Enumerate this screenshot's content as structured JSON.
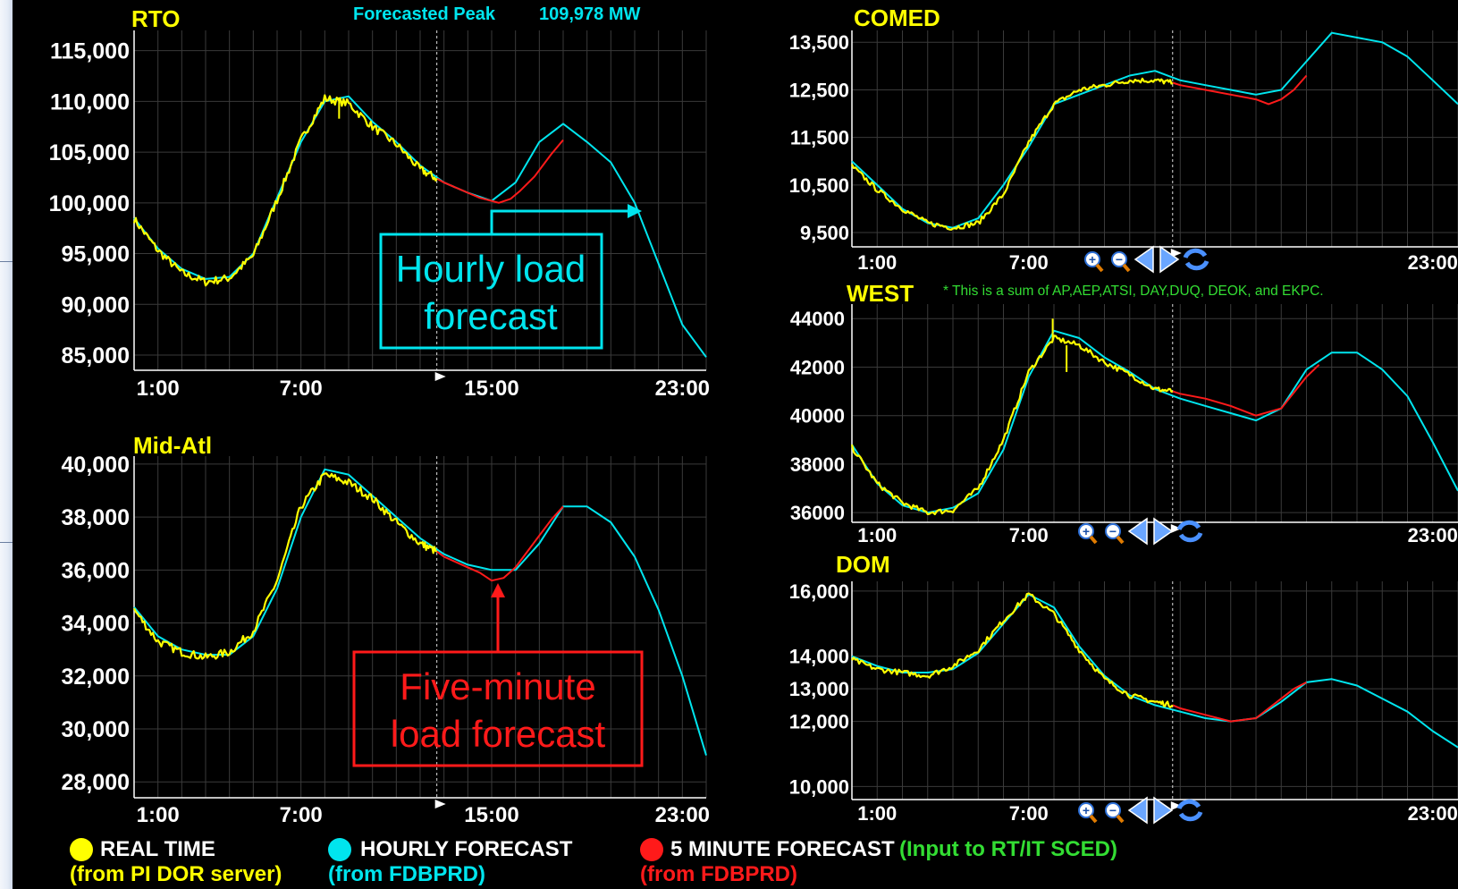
{
  "header": {
    "forecast_label": "Forecasted Peak",
    "forecast_value": "109,978 MW"
  },
  "colors": {
    "real_time": "#ffff00",
    "hourly": "#00e5ee",
    "five_minute": "#ff1a1a",
    "title": "#ffff00",
    "note": "#33dd33",
    "grid": "#3a3a3a"
  },
  "icons": [
    "zoom-in-icon",
    "zoom-out-icon",
    "arrow-left-icon",
    "arrow-right-icon",
    "refresh-icon"
  ],
  "chart_data": [
    {
      "id": "rto",
      "type": "line",
      "title": "RTO",
      "ylim": [
        83500,
        117000
      ],
      "xlim": [
        0,
        24
      ],
      "now_x": 12.7,
      "yticks": [
        85000,
        90000,
        95000,
        100000,
        105000,
        110000,
        115000
      ],
      "ytick_labels": [
        "85,000",
        "90,000",
        "95,000",
        "100,000",
        "105,000",
        "110,000",
        "115,000"
      ],
      "xticks": [
        1,
        7,
        15,
        23
      ],
      "xtick_labels": [
        "1:00",
        "7:00",
        "15:00",
        "23:00"
      ],
      "series": [
        {
          "key": "hourly",
          "x": [
            0,
            1,
            2,
            3,
            4,
            5,
            6,
            7,
            8,
            9,
            10,
            11,
            12,
            13,
            14,
            15,
            16,
            17,
            18,
            19,
            20,
            21,
            22,
            23,
            24
          ],
          "y": [
            98500,
            95500,
            93500,
            92500,
            92700,
            95000,
            100500,
            106000,
            110000,
            110500,
            108000,
            106000,
            103700,
            102000,
            101000,
            100200,
            102000,
            106000,
            107800,
            106000,
            104000,
            100000,
            94000,
            88000,
            84800
          ]
        },
        {
          "key": "real_time",
          "x": [
            0,
            1,
            2,
            3,
            4,
            5,
            6,
            7,
            8,
            9,
            10,
            11,
            12,
            12.7
          ],
          "y": [
            98400,
            95300,
            93100,
            92200,
            92600,
            94800,
            100300,
            106200,
            110300,
            109800,
            107500,
            105800,
            103300,
            102400
          ]
        },
        {
          "key": "five_minute",
          "x": [
            12.7,
            13,
            14,
            14.5,
            15,
            15.3,
            15.8,
            16.2,
            16.8,
            17.5,
            18
          ],
          "y": [
            102400,
            102000,
            101000,
            100500,
            100200,
            100000,
            100400,
            101200,
            102600,
            104800,
            106200
          ]
        }
      ]
    },
    {
      "id": "midatl",
      "type": "line",
      "title": "Mid-Atl",
      "ylim": [
        27400,
        40300
      ],
      "xlim": [
        0,
        24
      ],
      "now_x": 12.7,
      "yticks": [
        28000,
        30000,
        32000,
        34000,
        36000,
        38000,
        40000
      ],
      "ytick_labels": [
        "28,000",
        "30,000",
        "32,000",
        "34,000",
        "36,000",
        "38,000",
        "40,000"
      ],
      "xticks": [
        1,
        7,
        15,
        23
      ],
      "xtick_labels": [
        "1:00",
        "7:00",
        "15:00",
        "23:00"
      ],
      "series": [
        {
          "key": "hourly",
          "x": [
            0,
            1,
            2,
            3,
            4,
            5,
            6,
            7,
            8,
            9,
            10,
            11,
            12,
            13,
            14,
            15,
            16,
            17,
            18,
            19,
            20,
            21,
            22,
            23,
            24
          ],
          "y": [
            34600,
            33500,
            33000,
            32800,
            32800,
            33500,
            35300,
            38000,
            39800,
            39600,
            38800,
            38000,
            37200,
            36600,
            36200,
            36000,
            36000,
            37000,
            38400,
            38400,
            37800,
            36500,
            34500,
            32000,
            29000
          ]
        },
        {
          "key": "real_time",
          "x": [
            0,
            1,
            2,
            3,
            4,
            5,
            6,
            7,
            8,
            9,
            10,
            11,
            12,
            12.7
          ],
          "y": [
            34500,
            33300,
            32900,
            32700,
            32900,
            33700,
            35600,
            38400,
            39600,
            39300,
            38700,
            37800,
            37000,
            36700
          ]
        },
        {
          "key": "five_minute",
          "x": [
            12.7,
            13,
            14,
            14.5,
            15,
            15.5,
            16,
            16.5,
            17,
            17.5,
            18
          ],
          "y": [
            36700,
            36500,
            36100,
            35900,
            35600,
            35700,
            36100,
            36700,
            37300,
            37900,
            38400
          ]
        }
      ]
    },
    {
      "id": "comed",
      "type": "line",
      "title": "COMED",
      "ylim": [
        9200,
        13750
      ],
      "xlim": [
        0,
        24
      ],
      "now_x": 12.7,
      "yticks": [
        9500,
        10500,
        11500,
        12500,
        13500
      ],
      "ytick_labels": [
        "9,500",
        "10,500",
        "11,500",
        "12,500",
        "13,500"
      ],
      "xticks": [
        1,
        7,
        23
      ],
      "xtick_labels": [
        "1:00",
        "7:00",
        "23:00"
      ],
      "series": [
        {
          "key": "hourly",
          "x": [
            0,
            1,
            2,
            3,
            4,
            5,
            6,
            7,
            8,
            9,
            10,
            11,
            12,
            13,
            14,
            15,
            16,
            17,
            18,
            19,
            20,
            21,
            22,
            23,
            24
          ],
          "y": [
            11000,
            10500,
            10000,
            9700,
            9600,
            9800,
            10500,
            11300,
            12200,
            12400,
            12600,
            12800,
            12900,
            12700,
            12600,
            12500,
            12400,
            12500,
            13100,
            13700,
            13600,
            13500,
            13200,
            12700,
            12200
          ]
        },
        {
          "key": "real_time",
          "x": [
            0,
            1,
            2,
            3,
            4,
            5,
            6,
            7,
            8,
            9,
            10,
            11,
            12,
            12.7
          ],
          "y": [
            10900,
            10400,
            10000,
            9700,
            9600,
            9700,
            10300,
            11400,
            12200,
            12500,
            12600,
            12700,
            12700,
            12650
          ]
        },
        {
          "key": "five_minute",
          "x": [
            12.7,
            13,
            14,
            15,
            16,
            16.5,
            17,
            17.5,
            18
          ],
          "y": [
            12650,
            12600,
            12500,
            12400,
            12300,
            12200,
            12300,
            12500,
            12800
          ]
        }
      ]
    },
    {
      "id": "west",
      "type": "line",
      "title": "WEST",
      "note": "* This is a sum of AP,AEP,ATSI, DAY,DUQ, DEOK, and EKPC.",
      "ylim": [
        35600,
        44600
      ],
      "xlim": [
        0,
        24
      ],
      "now_x": 12.7,
      "yticks": [
        36000,
        38000,
        40000,
        42000,
        44000
      ],
      "ytick_labels": [
        "36000",
        "38000",
        "40000",
        "42000",
        "44000"
      ],
      "xticks": [
        1,
        7,
        23
      ],
      "xtick_labels": [
        "1:00",
        "7:00",
        "23:00"
      ],
      "series": [
        {
          "key": "hourly",
          "x": [
            0,
            1,
            2,
            3,
            4,
            5,
            6,
            7,
            8,
            9,
            10,
            11,
            12,
            13,
            14,
            15,
            16,
            17,
            18,
            19,
            20,
            21,
            22,
            23,
            24
          ],
          "y": [
            38800,
            37200,
            36300,
            36000,
            36200,
            36800,
            38600,
            41600,
            43500,
            43200,
            42400,
            41800,
            41100,
            40700,
            40400,
            40100,
            39800,
            40300,
            41900,
            42600,
            42600,
            41900,
            40800,
            38900,
            36900
          ]
        },
        {
          "key": "real_time",
          "x": [
            0,
            1,
            2,
            3,
            4,
            5,
            6,
            7,
            8,
            9,
            10,
            11,
            12,
            12.7
          ],
          "y": [
            38700,
            37200,
            36400,
            36000,
            36100,
            37000,
            39000,
            41800,
            43200,
            42900,
            42200,
            41700,
            41100,
            41000
          ]
        },
        {
          "key": "five_minute",
          "x": [
            12.7,
            13,
            14,
            15,
            16,
            17,
            18,
            18.5
          ],
          "y": [
            41000,
            40900,
            40700,
            40400,
            40000,
            40300,
            41600,
            42100
          ]
        }
      ]
    },
    {
      "id": "dom",
      "type": "line",
      "title": "DOM",
      "ylim": [
        9600,
        16300
      ],
      "xlim": [
        0,
        24
      ],
      "now_x": 12.7,
      "yticks": [
        10000,
        12000,
        13000,
        14000,
        16000
      ],
      "ytick_labels": [
        "10,000",
        "12,000",
        "13,000",
        "14,000",
        "16,000"
      ],
      "xticks": [
        1,
        7,
        23
      ],
      "xtick_labels": [
        "1:00",
        "7:00",
        "23:00"
      ],
      "series": [
        {
          "key": "hourly",
          "x": [
            0,
            1,
            2,
            3,
            4,
            5,
            6,
            7,
            8,
            9,
            10,
            11,
            12,
            13,
            14,
            15,
            16,
            17,
            18,
            19,
            20,
            21,
            22,
            23,
            24
          ],
          "y": [
            14000,
            13700,
            13500,
            13500,
            13600,
            14100,
            15000,
            15900,
            15500,
            14300,
            13400,
            12800,
            12500,
            12300,
            12100,
            12000,
            12100,
            12600,
            13200,
            13300,
            13100,
            12700,
            12300,
            11700,
            11200
          ]
        },
        {
          "key": "real_time",
          "x": [
            0,
            1,
            2,
            3,
            4,
            5,
            6,
            7,
            8,
            9,
            10,
            11,
            12,
            12.7
          ],
          "y": [
            13900,
            13600,
            13500,
            13400,
            13700,
            14200,
            15100,
            15900,
            15300,
            14200,
            13300,
            12800,
            12600,
            12500
          ]
        },
        {
          "key": "five_minute",
          "x": [
            12.7,
            13,
            14,
            15,
            16,
            17,
            17.5,
            18
          ],
          "y": [
            12500,
            12400,
            12200,
            12000,
            12100,
            12700,
            13000,
            13200
          ]
        }
      ]
    }
  ],
  "annotations": {
    "hourly_label": [
      "Hourly load",
      "forecast"
    ],
    "five_minute_label": [
      "Five-minute",
      "load forecast"
    ]
  },
  "legend": {
    "real_time": {
      "label": "REAL TIME",
      "sub": "(from PI DOR server)"
    },
    "hourly": {
      "label": "HOURLY FORECAST",
      "sub": "(from FDBPRD)"
    },
    "five_minute": {
      "label": "5 MINUTE FORECAST",
      "sub": "(from FDBPRD)",
      "extra": "(Input to RT/IT SCED)"
    }
  }
}
